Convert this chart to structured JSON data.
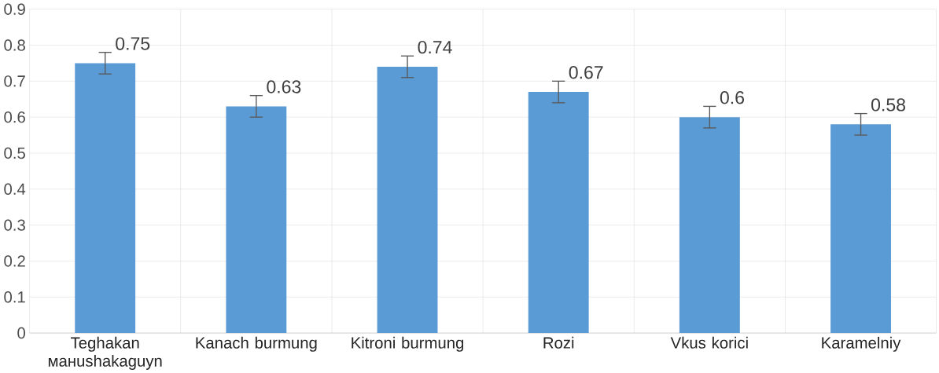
{
  "chart_data": {
    "type": "bar",
    "categories": [
      "Teghakan манushakaguyn",
      "Kanach burmung",
      "Kitroni burmung",
      "Rozi",
      "Vkus korici",
      "Karamelniy"
    ],
    "values": [
      0.75,
      0.63,
      0.74,
      0.67,
      0.6,
      0.58
    ],
    "errors": [
      0.03,
      0.03,
      0.03,
      0.03,
      0.03,
      0.03
    ],
    "color": "#5b9bd5",
    "ylim": [
      0,
      0.9
    ],
    "yticks": [
      0,
      0.1,
      0.2,
      0.3,
      0.4,
      0.5,
      0.6,
      0.7,
      0.8,
      0.9
    ],
    "grid": true,
    "data_labels": true
  }
}
